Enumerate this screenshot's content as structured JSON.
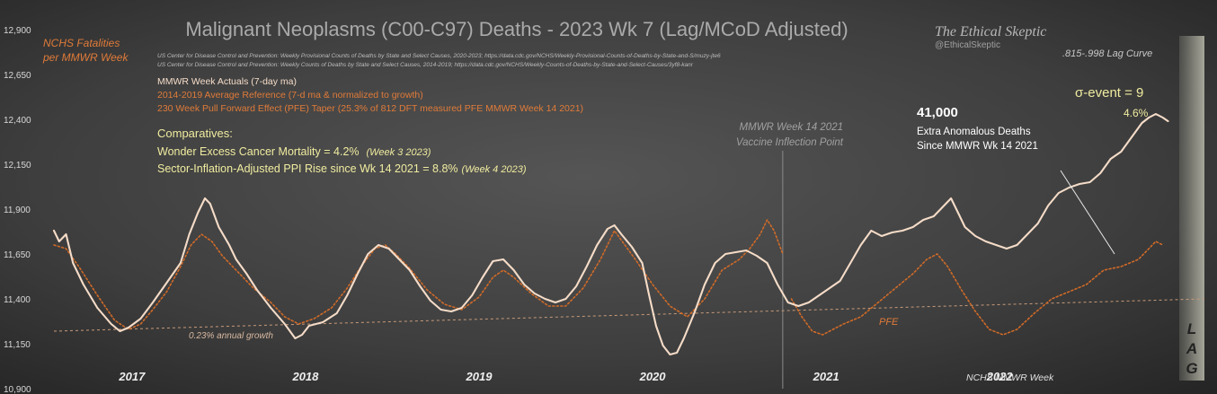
{
  "chart_data": {
    "type": "line",
    "title": "Malignant Neoplasms (C00-C97) Deaths - 2023 Wk 7 (Lag/MCoD Adjusted)",
    "ylabel": "NCHS Fatalities\nper MMWR Week",
    "xlabel": "NCHS MMWR Week",
    "watermark": "The Ethical Skeptic",
    "handle": "@EthicalSkeptic",
    "sources": [
      "US Center for Disease Control and Prevention: Weekly  Provisional Counts of Deaths by State and Select Causes, 2020-2023; https://data.cdc.gov/NCHS/Weekly-Provisional-Counts-of-Deaths-by-State-and-S/muzy-jte6",
      "US Center for Disease Control and Prevention: Weekly  Counts of Deaths by State and Select Causes, 2014-2019; https://data.cdc.gov/NCHS/Weekly-Counts-of-Deaths-by-State-and-Select-Causes/3yf8-kanr"
    ],
    "legend": [
      {
        "label": "MMWR Week Actuals (7-day ma)",
        "color": "#f5dcc8"
      },
      {
        "label": "2014-2019 Average Reference  (7-d ma & normalized to growth)",
        "color": "#e07b39"
      },
      {
        "label": "230 Week Pull Forward Effect (PFE) Taper (25.3% of 812 DFT measured PFE MMWR Week 14 2021)",
        "color": "#e07b39"
      }
    ],
    "comparatives_title": "Comparatives:",
    "comparatives": [
      {
        "text": "Wonder  Excess Cancer Mortality =  4.2%",
        "note": "(Week 3 2023)"
      },
      {
        "text": "Sector-Inflation-Adjusted  PPI Rise since Wk 14 2021 = 8.8%",
        "note": "(Week 4 2023)"
      }
    ],
    "ylim": [
      10900,
      12900
    ],
    "yticks": [
      12900,
      12650,
      12400,
      12150,
      11900,
      11650,
      11400,
      11150,
      10900
    ],
    "ytick_labels": [
      "12,900",
      "12,650",
      "12,400",
      "12,150",
      "11,900",
      "11,650",
      "11,400",
      "11,150",
      "10,900"
    ],
    "xlim": [
      2016.55,
      2023.18
    ],
    "year_labels": [
      {
        "label": "2017",
        "x": 2017.0
      },
      {
        "label": "2018",
        "x": 2018.0
      },
      {
        "label": "2019",
        "x": 2019.0
      },
      {
        "label": "2020",
        "x": 2020.0
      },
      {
        "label": "2021",
        "x": 2021.0
      },
      {
        "label": "2022",
        "x": 2022.0
      }
    ],
    "growth_line": {
      "label": "0.23% annual growth",
      "points": [
        [
          2016.55,
          11220
        ],
        [
          2023.18,
          11400
        ]
      ]
    },
    "inflection": {
      "x": 2020.75,
      "label1": "MMWR Week 14 2021",
      "label2": "Vaccine Inflection Point"
    },
    "annotations": {
      "excess_number": "41,000",
      "excess_line1": "Extra Anomalous Deaths",
      "excess_line2": "Since MMWR Wk 14 2021",
      "sigma": "σ-event = 9",
      "pct": "4.6%",
      "lag_curve": ".815-.998 Lag Curve",
      "pfe": "PFE",
      "lag_letters": [
        "L",
        "A",
        "G"
      ]
    },
    "series": [
      {
        "name": "MMWR Week Actuals (7-day ma)",
        "color": "#f5dcc8",
        "points": [
          [
            2016.55,
            11780
          ],
          [
            2016.58,
            11720
          ],
          [
            2016.62,
            11760
          ],
          [
            2016.66,
            11600
          ],
          [
            2016.72,
            11480
          ],
          [
            2016.8,
            11350
          ],
          [
            2016.88,
            11260
          ],
          [
            2016.93,
            11220
          ],
          [
            2016.98,
            11240
          ],
          [
            2017.05,
            11290
          ],
          [
            2017.12,
            11380
          ],
          [
            2017.2,
            11490
          ],
          [
            2017.28,
            11600
          ],
          [
            2017.33,
            11760
          ],
          [
            2017.38,
            11880
          ],
          [
            2017.42,
            11960
          ],
          [
            2017.45,
            11930
          ],
          [
            2017.5,
            11800
          ],
          [
            2017.56,
            11700
          ],
          [
            2017.6,
            11620
          ],
          [
            2017.66,
            11540
          ],
          [
            2017.72,
            11450
          ],
          [
            2017.8,
            11350
          ],
          [
            2017.88,
            11260
          ],
          [
            2017.94,
            11180
          ],
          [
            2017.98,
            11200
          ],
          [
            2018.02,
            11250
          ],
          [
            2018.1,
            11270
          ],
          [
            2018.18,
            11320
          ],
          [
            2018.24,
            11420
          ],
          [
            2018.3,
            11540
          ],
          [
            2018.36,
            11650
          ],
          [
            2018.42,
            11700
          ],
          [
            2018.48,
            11680
          ],
          [
            2018.54,
            11620
          ],
          [
            2018.6,
            11560
          ],
          [
            2018.66,
            11470
          ],
          [
            2018.72,
            11390
          ],
          [
            2018.78,
            11340
          ],
          [
            2018.84,
            11330
          ],
          [
            2018.9,
            11350
          ],
          [
            2018.96,
            11420
          ],
          [
            2019.02,
            11520
          ],
          [
            2019.08,
            11610
          ],
          [
            2019.14,
            11620
          ],
          [
            2019.2,
            11560
          ],
          [
            2019.26,
            11480
          ],
          [
            2019.32,
            11430
          ],
          [
            2019.38,
            11400
          ],
          [
            2019.44,
            11380
          ],
          [
            2019.5,
            11400
          ],
          [
            2019.56,
            11470
          ],
          [
            2019.62,
            11580
          ],
          [
            2019.68,
            11700
          ],
          [
            2019.74,
            11790
          ],
          [
            2019.78,
            11810
          ],
          [
            2019.82,
            11760
          ],
          [
            2019.88,
            11690
          ],
          [
            2019.94,
            11600
          ],
          [
            2019.98,
            11420
          ],
          [
            2020.02,
            11250
          ],
          [
            2020.06,
            11140
          ],
          [
            2020.1,
            11090
          ],
          [
            2020.14,
            11100
          ],
          [
            2020.18,
            11180
          ],
          [
            2020.24,
            11320
          ],
          [
            2020.3,
            11480
          ],
          [
            2020.36,
            11600
          ],
          [
            2020.42,
            11650
          ],
          [
            2020.48,
            11660
          ],
          [
            2020.54,
            11670
          ],
          [
            2020.6,
            11640
          ],
          [
            2020.66,
            11600
          ],
          [
            2020.72,
            11480
          ],
          [
            2020.78,
            11380
          ],
          [
            2020.84,
            11360
          ],
          [
            2020.9,
            11380
          ],
          [
            2020.96,
            11420
          ],
          [
            2021.02,
            11460
          ],
          [
            2021.08,
            11500
          ],
          [
            2021.14,
            11600
          ],
          [
            2021.2,
            11700
          ],
          [
            2021.26,
            11780
          ],
          [
            2021.32,
            11750
          ],
          [
            2021.38,
            11770
          ],
          [
            2021.44,
            11780
          ],
          [
            2021.5,
            11800
          ],
          [
            2021.56,
            11840
          ],
          [
            2021.62,
            11860
          ],
          [
            2021.68,
            11920
          ],
          [
            2021.72,
            11960
          ],
          [
            2021.76,
            11880
          ],
          [
            2021.8,
            11800
          ],
          [
            2021.86,
            11750
          ],
          [
            2021.92,
            11720
          ],
          [
            2021.98,
            11700
          ],
          [
            2022.04,
            11680
          ],
          [
            2022.1,
            11700
          ],
          [
            2022.16,
            11760
          ],
          [
            2022.22,
            11820
          ],
          [
            2022.28,
            11920
          ],
          [
            2022.34,
            11990
          ],
          [
            2022.4,
            12020
          ],
          [
            2022.46,
            12040
          ],
          [
            2022.52,
            12050
          ],
          [
            2022.58,
            12100
          ],
          [
            2022.64,
            12180
          ],
          [
            2022.7,
            12220
          ],
          [
            2022.76,
            12300
          ],
          [
            2022.82,
            12380
          ],
          [
            2022.86,
            12410
          ],
          [
            2022.9,
            12430
          ],
          [
            2022.94,
            12410
          ],
          [
            2022.97,
            12390
          ]
        ]
      },
      {
        "name": "2014-2019 Average Reference",
        "color": "#d06a28",
        "dash": true,
        "points": [
          [
            2016.55,
            11700
          ],
          [
            2016.62,
            11680
          ],
          [
            2016.7,
            11570
          ],
          [
            2016.8,
            11420
          ],
          [
            2016.9,
            11280
          ],
          [
            2016.98,
            11230
          ],
          [
            2017.05,
            11260
          ],
          [
            2017.12,
            11340
          ],
          [
            2017.2,
            11440
          ],
          [
            2017.28,
            11580
          ],
          [
            2017.34,
            11700
          ],
          [
            2017.4,
            11760
          ],
          [
            2017.46,
            11720
          ],
          [
            2017.52,
            11640
          ],
          [
            2017.6,
            11560
          ],
          [
            2017.7,
            11460
          ],
          [
            2017.8,
            11380
          ],
          [
            2017.88,
            11300
          ],
          [
            2017.96,
            11260
          ],
          [
            2018.05,
            11290
          ],
          [
            2018.15,
            11350
          ],
          [
            2018.24,
            11460
          ],
          [
            2018.32,
            11580
          ],
          [
            2018.4,
            11680
          ],
          [
            2018.46,
            11700
          ],
          [
            2018.52,
            11650
          ],
          [
            2018.6,
            11570
          ],
          [
            2018.7,
            11450
          ],
          [
            2018.8,
            11370
          ],
          [
            2018.9,
            11340
          ],
          [
            2019.0,
            11410
          ],
          [
            2019.08,
            11520
          ],
          [
            2019.14,
            11560
          ],
          [
            2019.2,
            11520
          ],
          [
            2019.3,
            11430
          ],
          [
            2019.4,
            11360
          ],
          [
            2019.5,
            11360
          ],
          [
            2019.6,
            11460
          ],
          [
            2019.7,
            11620
          ],
          [
            2019.78,
            11780
          ],
          [
            2019.84,
            11700
          ],
          [
            2019.9,
            11620
          ],
          [
            2020.0,
            11480
          ],
          [
            2020.1,
            11360
          ],
          [
            2020.2,
            11300
          ],
          [
            2020.3,
            11400
          ],
          [
            2020.4,
            11560
          ],
          [
            2020.5,
            11620
          ],
          [
            2020.56,
            11680
          ],
          [
            2020.62,
            11760
          ],
          [
            2020.66,
            11840
          ],
          [
            2020.7,
            11780
          ],
          [
            2020.75,
            11650
          ]
        ]
      },
      {
        "name": "230 Week Pull Forward Effect (PFE) Taper",
        "color": "#d06a28",
        "dash": true,
        "points": [
          [
            2020.8,
            11400
          ],
          [
            2020.86,
            11300
          ],
          [
            2020.92,
            11220
          ],
          [
            2020.98,
            11200
          ],
          [
            2021.04,
            11230
          ],
          [
            2021.1,
            11260
          ],
          [
            2021.2,
            11300
          ],
          [
            2021.3,
            11380
          ],
          [
            2021.4,
            11460
          ],
          [
            2021.5,
            11540
          ],
          [
            2021.58,
            11620
          ],
          [
            2021.64,
            11650
          ],
          [
            2021.7,
            11580
          ],
          [
            2021.78,
            11450
          ],
          [
            2021.86,
            11330
          ],
          [
            2021.94,
            11230
          ],
          [
            2022.02,
            11200
          ],
          [
            2022.1,
            11230
          ],
          [
            2022.2,
            11320
          ],
          [
            2022.3,
            11400
          ],
          [
            2022.4,
            11440
          ],
          [
            2022.5,
            11480
          ],
          [
            2022.6,
            11560
          ],
          [
            2022.7,
            11580
          ],
          [
            2022.8,
            11620
          ],
          [
            2022.86,
            11680
          ],
          [
            2022.9,
            11720
          ],
          [
            2022.94,
            11700
          ]
        ]
      }
    ]
  }
}
